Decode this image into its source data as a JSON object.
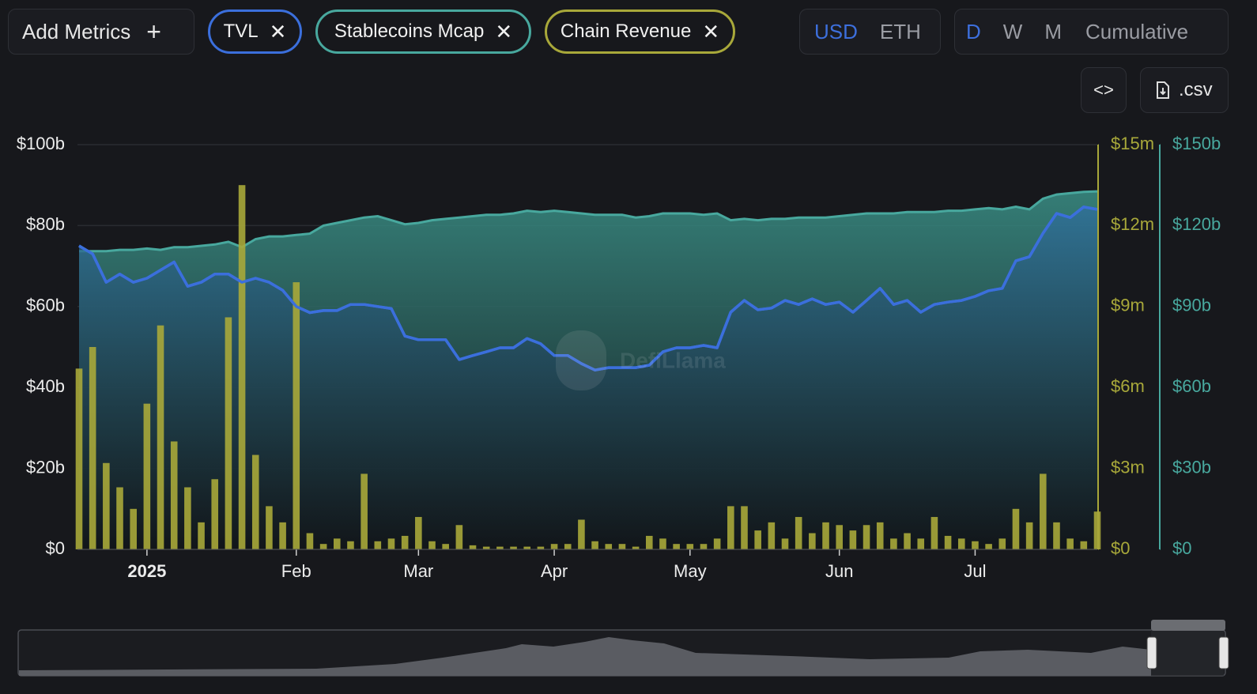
{
  "controls": {
    "add_metrics": "Add Metrics",
    "currency": [
      "USD",
      "ETH"
    ],
    "periods": [
      "D",
      "W",
      "M",
      "Cumulative"
    ],
    "csv": ".csv"
  },
  "chart_data": {
    "type": "combo",
    "watermark": "DefiLlama",
    "categories": [
      null,
      null,
      null,
      null,
      null,
      "2025",
      null,
      null,
      null,
      null,
      null,
      null,
      null,
      null,
      null,
      null,
      "Feb",
      null,
      null,
      null,
      null,
      null,
      null,
      null,
      null,
      "Mar",
      null,
      null,
      null,
      null,
      null,
      null,
      null,
      null,
      null,
      "Apr",
      null,
      null,
      null,
      null,
      null,
      null,
      null,
      null,
      null,
      "May",
      null,
      null,
      null,
      null,
      null,
      null,
      null,
      null,
      null,
      null,
      "Jun",
      null,
      null,
      null,
      null,
      null,
      null,
      null,
      null,
      null,
      "Jul",
      null,
      null,
      null,
      null,
      null,
      null,
      null,
      null,
      null
    ],
    "series": [
      {
        "name": "Stablecoins Mcap",
        "type": "area",
        "axis": "y3",
        "color": "#48a89e",
        "values": [
          110.5,
          110.5,
          110.5,
          111,
          111,
          111.5,
          111,
          112,
          112,
          112.5,
          113,
          114,
          112,
          115,
          116,
          116,
          116.5,
          117,
          120,
          121,
          122,
          123,
          123.5,
          122,
          120.5,
          121,
          122,
          122.5,
          123,
          123.5,
          124,
          124,
          124.5,
          125.5,
          125,
          125.5,
          125,
          124.5,
          124,
          124,
          124,
          123,
          123.5,
          124.5,
          124.5,
          124.5,
          124,
          124.5,
          122,
          122.5,
          122,
          122.5,
          122.5,
          123,
          123,
          123,
          123.5,
          124,
          124.5,
          124.5,
          124.5,
          125,
          125,
          125,
          125.5,
          125.5,
          126,
          126.5,
          126,
          127,
          126,
          130,
          131.5,
          132,
          132.5,
          132.7
        ]
      },
      {
        "name": "Chain Revenue",
        "type": "bar",
        "axis": "y2",
        "color": "#a8a83a",
        "values": [
          6.7,
          7.5,
          3.2,
          2.3,
          1.5,
          5.4,
          8.3,
          4,
          2.3,
          1,
          2.6,
          8.6,
          13.5,
          3.5,
          1.6,
          1,
          9.9,
          0.6,
          0.2,
          0.4,
          0.3,
          2.8,
          0.3,
          0.4,
          0.5,
          1.2,
          0.3,
          0.2,
          0.9,
          0.15,
          0.1,
          0.1,
          0.1,
          0.1,
          0.1,
          0.2,
          0.2,
          1.1,
          0.3,
          0.2,
          0.2,
          0.1,
          0.5,
          0.4,
          0.2,
          0.2,
          0.2,
          0.4,
          1.6,
          1.6,
          0.7,
          1,
          0.4,
          1.2,
          0.6,
          1,
          0.9,
          0.7,
          0.9,
          1,
          0.4,
          0.6,
          0.4,
          1.2,
          0.5,
          0.4,
          0.3,
          0.2,
          0.4,
          1.5,
          1,
          2.8,
          1,
          0.4,
          0.3,
          1.4
        ]
      },
      {
        "name": "TVL",
        "type": "line",
        "axis": "y",
        "color": "#3b6fdc",
        "values": [
          75,
          73,
          66,
          68,
          66,
          67,
          69,
          71,
          65,
          66,
          68,
          68,
          66,
          67,
          66,
          64,
          60,
          58.5,
          59,
          59,
          60.5,
          60.5,
          60,
          59.5,
          52.7,
          51.8,
          51.8,
          51.8,
          46.9,
          47.9,
          48.8,
          49.8,
          49.8,
          52.1,
          50.8,
          47.9,
          47.9,
          45.9,
          44.3,
          44.9,
          44.9,
          44.9,
          45.5,
          48.8,
          49.8,
          49.8,
          50.4,
          49.8,
          58.6,
          61.5,
          59.2,
          59.6,
          61.5,
          60.5,
          61.9,
          60.5,
          61.1,
          58.6,
          61.5,
          64.5,
          60.5,
          61.5,
          58.6,
          60.5,
          61.1,
          61.5,
          62.5,
          63.9,
          64.5,
          71.3,
          72.3,
          78.1,
          83,
          82,
          84.6,
          84
        ]
      }
    ],
    "ylim": [
      0,
      100
    ],
    "yticks": [
      {
        "value": 0,
        "label": "$0"
      },
      {
        "value": 20,
        "label": "$20b"
      },
      {
        "value": 40,
        "label": "$40b"
      },
      {
        "value": 60,
        "label": "$60b"
      },
      {
        "value": 80,
        "label": "$80b"
      },
      {
        "value": 100,
        "label": "$100b"
      }
    ],
    "y2lim": [
      0,
      15
    ],
    "y2ticks": [
      {
        "value": 0,
        "label": "$0"
      },
      {
        "value": 3,
        "label": "$3m"
      },
      {
        "value": 6,
        "label": "$6m"
      },
      {
        "value": 9,
        "label": "$9m"
      },
      {
        "value": 12,
        "label": "$12m"
      },
      {
        "value": 15,
        "label": "$15m"
      }
    ],
    "y3lim": [
      0,
      150
    ],
    "y3ticks": [
      {
        "value": 0,
        "label": "$0"
      },
      {
        "value": 30,
        "label": "$30b"
      },
      {
        "value": 60,
        "label": "$60b"
      },
      {
        "value": 90,
        "label": "$90b"
      },
      {
        "value": 120,
        "label": "$120b"
      },
      {
        "value": 150,
        "label": "$150b"
      }
    ],
    "grid": true
  }
}
